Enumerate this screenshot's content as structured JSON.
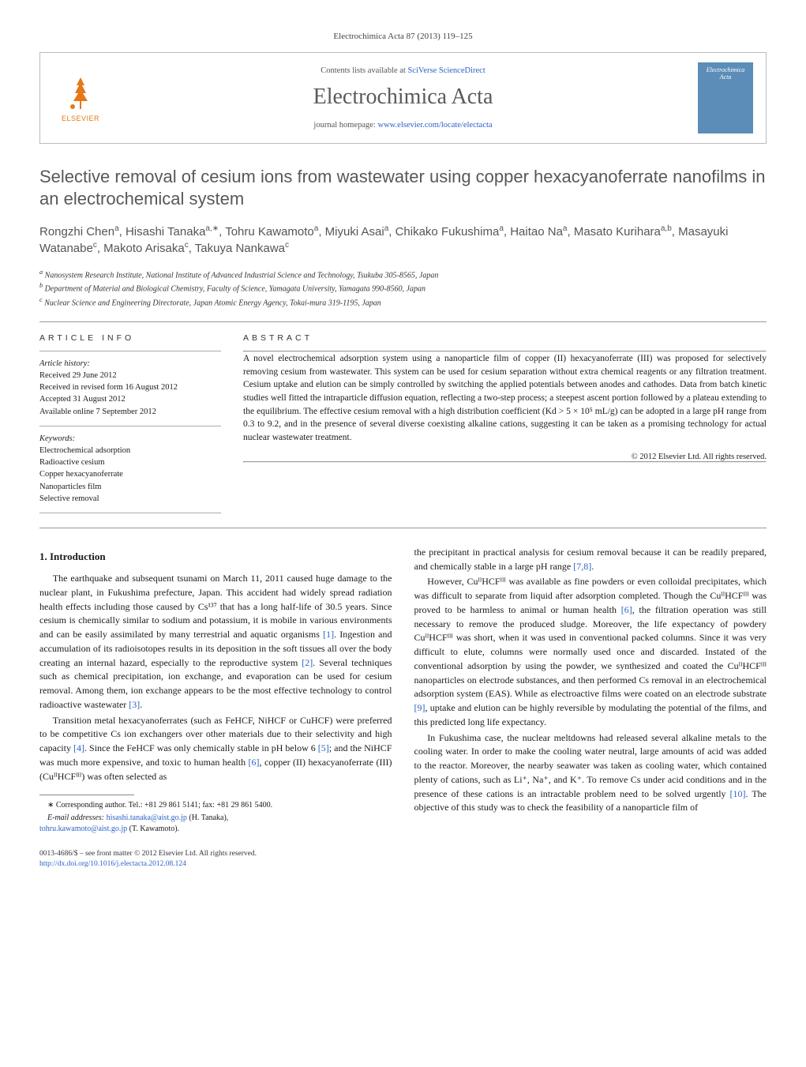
{
  "journal_ref": "Electrochimica Acta 87 (2013) 119–125",
  "header": {
    "elsevier_brand": "ELSEVIER",
    "contents_line_pre": "Contents lists available at ",
    "contents_link": "SciVerse ScienceDirect",
    "journal_title": "Electrochimica Acta",
    "homepage_pre": "journal homepage: ",
    "homepage_link": "www.elsevier.com/locate/electacta",
    "cover_title_1": "Electrochimica",
    "cover_title_2": "Acta"
  },
  "title": "Selective removal of cesium ions from wastewater using copper hexacyanoferrate nanofilms in an electrochemical system",
  "authors_html": "Rongzhi Chen<sup>a</sup>, Hisashi Tanaka<sup>a,∗</sup>, Tohru Kawamoto<sup>a</sup>, Miyuki Asai<sup>a</sup>, Chikako Fukushima<sup>a</sup>, Haitao Na<sup>a</sup>, Masato Kurihara<sup>a,b</sup>, Masayuki Watanabe<sup>c</sup>, Makoto Arisaka<sup>c</sup>, Takuya Nankawa<sup>c</sup>",
  "affiliations": [
    "a Nanosystem Research Institute, National Institute of Advanced Industrial Science and Technology, Tsukuba 305-8565, Japan",
    "b Department of Material and Biological Chemistry, Faculty of Science, Yamagata University, Yamagata 990-8560, Japan",
    "c Nuclear Science and Engineering Directorate, Japan Atomic Energy Agency, Tokai-mura 319-1195, Japan"
  ],
  "article_info": {
    "head": "ARTICLE INFO",
    "history_label": "Article history:",
    "history": [
      "Received 29 June 2012",
      "Received in revised form 16 August 2012",
      "Accepted 31 August 2012",
      "Available online 7 September 2012"
    ],
    "keywords_label": "Keywords:",
    "keywords": [
      "Electrochemical adsorption",
      "Radioactive cesium",
      "Copper hexacyanoferrate",
      "Nanoparticles film",
      "Selective removal"
    ]
  },
  "abstract": {
    "head": "ABSTRACT",
    "text": "A novel electrochemical adsorption system using a nanoparticle film of copper (II) hexacyanoferrate (III) was proposed for selectively removing cesium from wastewater. This system can be used for cesium separation without extra chemical reagents or any filtration treatment. Cesium uptake and elution can be simply controlled by switching the applied potentials between anodes and cathodes. Data from batch kinetic studies well fitted the intraparticle diffusion equation, reflecting a two-step process; a steepest ascent portion followed by a plateau extending to the equilibrium. The effective cesium removal with a high distribution coefficient (Kd > 5 × 10⁵ mL/g) can be adopted in a large pH range from 0.3 to 9.2, and in the presence of several diverse coexisting alkaline cations, suggesting it can be taken as a promising technology for actual nuclear wastewater treatment.",
    "copyright": "© 2012 Elsevier Ltd. All rights reserved."
  },
  "section1_head": "1. Introduction",
  "para1": "The earthquake and subsequent tsunami on March 11, 2011 caused huge damage to the nuclear plant, in Fukushima prefecture, Japan. This accident had widely spread radiation health effects including those caused by Cs¹³⁷ that has a long half-life of 30.5 years. Since cesium is chemically similar to sodium and potassium, it is mobile in various environments and can be easily assimilated by many terrestrial and aquatic organisms [1]. Ingestion and accumulation of its radioisotopes results in its deposition in the soft tissues all over the body creating an internal hazard, especially to the reproductive system [2]. Several techniques such as chemical precipitation, ion exchange, and evaporation can be used for cesium removal. Among them, ion exchange appears to be the most effective technology to control radioactive wastewater [3].",
  "para2": "Transition metal hexacyanoferrates (such as FeHCF, NiHCF or CuHCF) were preferred to be competitive Cs ion exchangers over other materials due to their selectivity and high capacity [4]. Since the FeHCF was only chemically stable in pH below 6 [5]; and the NiHCF was much more expensive, and toxic to human health [6], copper (II) hexacyanoferrate (III) (CuᴵᴵHCFᴵᴵᴵ) was often selected as",
  "para3": "the precipitant in practical analysis for cesium removal because it can be readily prepared, and chemically stable in a large pH range [7,8].",
  "para4": "However, CuᴵᴵHCFᴵᴵᴵ was available as fine powders or even colloidal precipitates, which was difficult to separate from liquid after adsorption completed. Though the CuᴵᴵHCFᴵᴵᴵ was proved to be harmless to animal or human health [6], the filtration operation was still necessary to remove the produced sludge. Moreover, the life expectancy of powdery CuᴵᴵHCFᴵᴵᴵ was short, when it was used in conventional packed columns. Since it was very difficult to elute, columns were normally used once and discarded. Instated of the conventional adsorption by using the powder, we synthesized and coated the CuᴵᴵHCFᴵᴵᴵ nanoparticles on electrode substances, and then performed Cs removal in an electrochemical adsorption system (EAS). While as electroactive films were coated on an electrode substrate [9], uptake and elution can be highly reversible by modulating the potential of the films, and this predicted long life expectancy.",
  "para5": "In Fukushima case, the nuclear meltdowns had released several alkaline metals to the cooling water. In order to make the cooling water neutral, large amounts of acid was added to the reactor. Moreover, the nearby seawater was taken as cooling water, which contained plenty of cations, such as Li⁺, Na⁺, and K⁺. To remove Cs under acid conditions and in the presence of these cations is an intractable problem need to be solved urgently [10]. The objective of this study was to check the feasibility of a nanoparticle film of",
  "footnote": {
    "corr": "∗ Corresponding author. Tel.: +81 29 861 5141; fax: +81 29 861 5400.",
    "email_label": "E-mail addresses: ",
    "email1": "hisashi.tanaka@aist.go.jp",
    "email1_paren": " (H. Tanaka),",
    "email2": "tohru.kawamoto@aist.go.jp",
    "email2_paren": " (T. Kawamoto)."
  },
  "bottom": {
    "line1": "0013-4686/$ – see front matter © 2012 Elsevier Ltd. All rights reserved.",
    "doi": "http://dx.doi.org/10.1016/j.electacta.2012.08.124"
  },
  "colors": {
    "link": "#2a62c9",
    "elsevier_orange": "#e67817",
    "journal_grey": "#5a5a5a",
    "cover_blue": "#5b8db8"
  },
  "typography": {
    "body_fontsize_pt": 9,
    "title_fontsize_pt": 16,
    "journal_title_fontsize_pt": 21
  }
}
